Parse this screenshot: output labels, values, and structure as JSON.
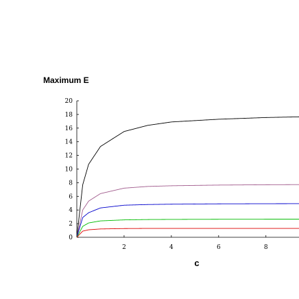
{
  "chart_data": {
    "type": "line",
    "title": "",
    "ylabel": "Maximum E",
    "xlabel": "c",
    "xlim": [
      0,
      9.4
    ],
    "ylim": [
      0,
      20
    ],
    "x_ticks": [
      2,
      4,
      6,
      8
    ],
    "x_tick_labels": [
      "2",
      "4",
      "6",
      "8"
    ],
    "y_ticks": [
      0,
      2,
      4,
      6,
      8,
      10,
      12,
      14,
      16,
      18,
      20
    ],
    "y_tick_labels": [
      "0",
      "2",
      "4",
      "6",
      "8",
      "10",
      "12",
      "14",
      "16",
      "18",
      "20"
    ],
    "grid": false,
    "legend": "none",
    "series": [
      {
        "color": "#000000",
        "x": [
          0,
          0.25,
          0.5,
          1,
          2,
          3,
          4,
          6,
          8,
          9.4
        ],
        "y": [
          0,
          7.7,
          10.7,
          13.3,
          15.5,
          16.4,
          16.9,
          17.3,
          17.55,
          17.65
        ]
      },
      {
        "color": "#a05a8c",
        "x": [
          0,
          0.25,
          0.5,
          1,
          2,
          3,
          4,
          6,
          8,
          9.4
        ],
        "y": [
          0,
          4.0,
          5.3,
          6.4,
          7.2,
          7.45,
          7.55,
          7.65,
          7.7,
          7.72
        ]
      },
      {
        "color": "#0000cc",
        "x": [
          0,
          0.25,
          0.5,
          1,
          2,
          3,
          4,
          6,
          8,
          9.4
        ],
        "y": [
          0,
          2.9,
          3.6,
          4.3,
          4.7,
          4.8,
          4.85,
          4.9,
          4.92,
          4.93
        ]
      },
      {
        "color": "#00bb00",
        "x": [
          0,
          0.25,
          0.5,
          1,
          2,
          3,
          4,
          6,
          8,
          9.4
        ],
        "y": [
          0,
          1.6,
          2.1,
          2.4,
          2.55,
          2.6,
          2.62,
          2.64,
          2.65,
          2.65
        ]
      },
      {
        "color": "#dd0000",
        "x": [
          0,
          0.25,
          0.5,
          1,
          2,
          3,
          4,
          6,
          8,
          9.4
        ],
        "y": [
          0,
          0.9,
          1.1,
          1.22,
          1.28,
          1.3,
          1.3,
          1.3,
          1.3,
          1.3
        ]
      }
    ]
  }
}
